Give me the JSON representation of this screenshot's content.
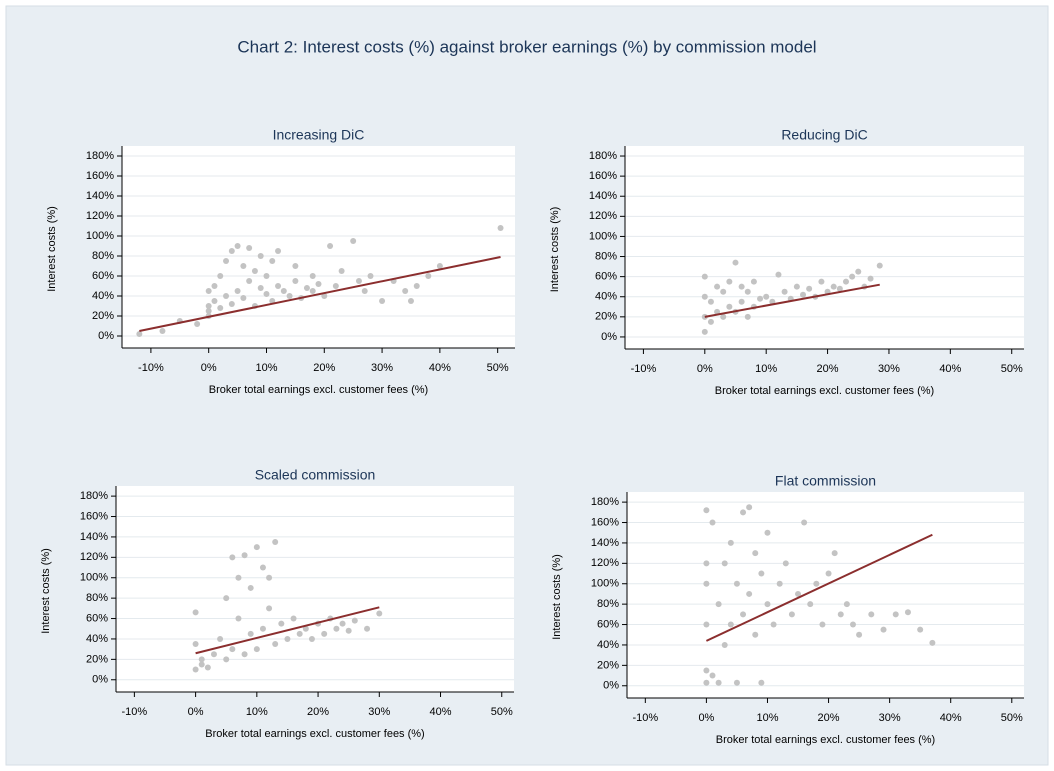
{
  "title": "Chart 2: Interest costs (%) against broker earnings (%) by commission model",
  "chart_data": [
    {
      "type": "scatter",
      "title": "Increasing DiC",
      "xlabel": "Broker total earnings excl. customer fees (%)",
      "ylabel": "Interest costs (%)",
      "xlim": [
        -15,
        53
      ],
      "ylim": [
        -12,
        186
      ],
      "grid": true,
      "xticks": [
        {
          "value": -10,
          "label": "-10%"
        },
        {
          "value": 0,
          "label": "0%"
        },
        {
          "value": 10,
          "label": "10%"
        },
        {
          "value": 20,
          "label": "20%"
        },
        {
          "value": 30,
          "label": "30%"
        },
        {
          "value": 40,
          "label": "40%"
        },
        {
          "value": 50,
          "label": "50%"
        }
      ],
      "yticks": [
        {
          "value": 0,
          "label": "0%"
        },
        {
          "value": 20,
          "label": "20%"
        },
        {
          "value": 40,
          "label": "40%"
        },
        {
          "value": 60,
          "label": "60%"
        },
        {
          "value": 80,
          "label": "80%"
        },
        {
          "value": 100,
          "label": "100%"
        },
        {
          "value": 120,
          "label": "120%"
        },
        {
          "value": 140,
          "label": "140%"
        },
        {
          "value": 160,
          "label": "160%"
        },
        {
          "value": 180,
          "label": "180%"
        }
      ],
      "series": [
        {
          "color": "#c3c3c3",
          "x": [
            -12,
            -8,
            -5,
            -2,
            0,
            0,
            0,
            0,
            1,
            1,
            2,
            2,
            3,
            3,
            4,
            4,
            5,
            5,
            6,
            6,
            7,
            7,
            8,
            8,
            9,
            9,
            10,
            10,
            11,
            11,
            12,
            12,
            13,
            14,
            15,
            15,
            16,
            17,
            18,
            18,
            19,
            20,
            21,
            22,
            23,
            25,
            26,
            27,
            28,
            30,
            32,
            34,
            35,
            36,
            38,
            40,
            50.5
          ],
          "values": [
            2,
            5,
            15,
            12,
            20,
            30,
            45,
            25,
            35,
            50,
            28,
            60,
            40,
            75,
            32,
            85,
            45,
            90,
            38,
            70,
            55,
            88,
            30,
            65,
            48,
            80,
            42,
            60,
            35,
            75,
            50,
            85,
            45,
            40,
            55,
            70,
            38,
            48,
            60,
            45,
            52,
            40,
            90,
            50,
            65,
            95,
            55,
            45,
            60,
            35,
            55,
            45,
            35,
            50,
            60,
            70,
            108
          ]
        }
      ],
      "fit_line": {
        "color": "#8b2e2e",
        "x": [
          -12,
          50.5
        ],
        "values": [
          5,
          79
        ]
      }
    },
    {
      "type": "scatter",
      "title": "Reducing DiC",
      "xlabel": "Broker total earnings excl. customer fees (%)",
      "ylabel": "Interest costs (%)",
      "xlim": [
        -13,
        52
      ],
      "ylim": [
        -12,
        186
      ],
      "grid": true,
      "xticks": [
        {
          "value": -10,
          "label": "-10%"
        },
        {
          "value": 0,
          "label": "0%"
        },
        {
          "value": 10,
          "label": "10%"
        },
        {
          "value": 20,
          "label": "20%"
        },
        {
          "value": 30,
          "label": "30%"
        },
        {
          "value": 40,
          "label": "40%"
        },
        {
          "value": 50,
          "label": "50%"
        }
      ],
      "yticks": [
        {
          "value": 0,
          "label": "0%"
        },
        {
          "value": 20,
          "label": "20%"
        },
        {
          "value": 40,
          "label": "40%"
        },
        {
          "value": 60,
          "label": "60%"
        },
        {
          "value": 80,
          "label": "80%"
        },
        {
          "value": 100,
          "label": "100%"
        },
        {
          "value": 120,
          "label": "120%"
        },
        {
          "value": 140,
          "label": "140%"
        },
        {
          "value": 160,
          "label": "160%"
        },
        {
          "value": 180,
          "label": "180%"
        }
      ],
      "series": [
        {
          "color": "#c3c3c3",
          "x": [
            0,
            0,
            0,
            0,
            1,
            1,
            2,
            2,
            3,
            3,
            4,
            4,
            5,
            5,
            6,
            6,
            7,
            7,
            8,
            8,
            9,
            10,
            11,
            12,
            13,
            14,
            15,
            16,
            17,
            18,
            19,
            20,
            21,
            22,
            23,
            24,
            25,
            26,
            27,
            28.5
          ],
          "values": [
            5,
            20,
            40,
            60,
            15,
            35,
            25,
            50,
            20,
            45,
            30,
            55,
            25,
            74,
            35,
            50,
            20,
            45,
            30,
            55,
            38,
            40,
            35,
            62,
            45,
            38,
            50,
            42,
            48,
            40,
            55,
            45,
            50,
            48,
            55,
            60,
            65,
            50,
            58,
            71
          ]
        }
      ],
      "fit_line": {
        "color": "#8b2e2e",
        "x": [
          0,
          28.5
        ],
        "values": [
          20,
          52
        ]
      }
    },
    {
      "type": "scatter",
      "title": "Scaled commission",
      "xlabel": "Broker total earnings excl. customer fees (%)",
      "ylabel": "Interest costs (%)",
      "xlim": [
        -13,
        52
      ],
      "ylim": [
        -12,
        186
      ],
      "grid": true,
      "xticks": [
        {
          "value": -10,
          "label": "-10%"
        },
        {
          "value": 0,
          "label": "0%"
        },
        {
          "value": 10,
          "label": "10%"
        },
        {
          "value": 20,
          "label": "20%"
        },
        {
          "value": 30,
          "label": "30%"
        },
        {
          "value": 40,
          "label": "40%"
        },
        {
          "value": 50,
          "label": "50%"
        }
      ],
      "yticks": [
        {
          "value": 0,
          "label": "0%"
        },
        {
          "value": 20,
          "label": "20%"
        },
        {
          "value": 40,
          "label": "40%"
        },
        {
          "value": 60,
          "label": "60%"
        },
        {
          "value": 80,
          "label": "80%"
        },
        {
          "value": 100,
          "label": "100%"
        },
        {
          "value": 120,
          "label": "120%"
        },
        {
          "value": 140,
          "label": "140%"
        },
        {
          "value": 160,
          "label": "160%"
        },
        {
          "value": 180,
          "label": "180%"
        }
      ],
      "series": [
        {
          "color": "#c3c3c3",
          "x": [
            0,
            0,
            0,
            1,
            1,
            2,
            3,
            4,
            5,
            5,
            6,
            6,
            7,
            7,
            8,
            8,
            9,
            9,
            10,
            10,
            11,
            11,
            12,
            12,
            13,
            13,
            14,
            15,
            16,
            17,
            18,
            19,
            20,
            21,
            22,
            23,
            24,
            25,
            26,
            28,
            30
          ],
          "values": [
            10,
            35,
            66,
            15,
            20,
            12,
            25,
            40,
            20,
            80,
            30,
            120,
            60,
            100,
            25,
            122,
            45,
            90,
            30,
            130,
            50,
            110,
            70,
            100,
            35,
            135,
            55,
            40,
            60,
            45,
            50,
            40,
            55,
            45,
            60,
            50,
            55,
            48,
            58,
            50,
            65
          ]
        }
      ],
      "fit_line": {
        "color": "#8b2e2e",
        "x": [
          0,
          30
        ],
        "values": [
          26,
          71
        ]
      }
    },
    {
      "type": "scatter",
      "title": "Flat commission",
      "xlabel": "Broker total earnings excl. customer fees (%)",
      "ylabel": "Interest costs (%)",
      "xlim": [
        -13,
        52
      ],
      "ylim": [
        -12,
        186
      ],
      "grid": true,
      "xticks": [
        {
          "value": -10,
          "label": "-10%"
        },
        {
          "value": 0,
          "label": "0%"
        },
        {
          "value": 10,
          "label": "10%"
        },
        {
          "value": 20,
          "label": "20%"
        },
        {
          "value": 30,
          "label": "30%"
        },
        {
          "value": 40,
          "label": "40%"
        },
        {
          "value": 50,
          "label": "50%"
        }
      ],
      "yticks": [
        {
          "value": 0,
          "label": "0%"
        },
        {
          "value": 20,
          "label": "20%"
        },
        {
          "value": 40,
          "label": "40%"
        },
        {
          "value": 60,
          "label": "60%"
        },
        {
          "value": 80,
          "label": "80%"
        },
        {
          "value": 100,
          "label": "100%"
        },
        {
          "value": 120,
          "label": "120%"
        },
        {
          "value": 140,
          "label": "140%"
        },
        {
          "value": 160,
          "label": "160%"
        },
        {
          "value": 180,
          "label": "180%"
        }
      ],
      "series": [
        {
          "color": "#c3c3c3",
          "x": [
            0,
            0,
            0,
            0,
            0,
            0,
            1,
            1,
            2,
            2,
            3,
            3,
            4,
            4,
            5,
            5,
            6,
            6,
            7,
            7,
            8,
            8,
            9,
            9,
            10,
            10,
            11,
            12,
            13,
            14,
            15,
            16,
            17,
            18,
            19,
            20,
            21,
            22,
            23,
            24,
            25,
            27,
            29,
            31,
            33,
            35,
            37
          ],
          "values": [
            3,
            15,
            60,
            100,
            120,
            172,
            10,
            160,
            3,
            80,
            40,
            120,
            60,
            140,
            3,
            100,
            170,
            70,
            90,
            175,
            50,
            130,
            3,
            110,
            80,
            150,
            60,
            100,
            120,
            70,
            90,
            160,
            80,
            100,
            60,
            110,
            130,
            70,
            80,
            60,
            50,
            70,
            55,
            70,
            72,
            55,
            42
          ]
        }
      ],
      "fit_line": {
        "color": "#8b2e2e",
        "x": [
          0,
          37
        ],
        "values": [
          44,
          148
        ]
      }
    }
  ]
}
